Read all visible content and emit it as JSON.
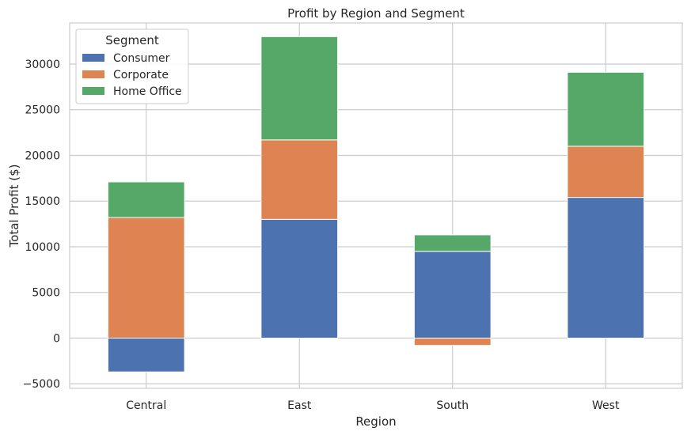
{
  "chart_data": {
    "type": "bar",
    "stacked": true,
    "title": "Profit by Region and Segment",
    "xlabel": "Region",
    "ylabel": "Total Profit ($)",
    "categories": [
      "Central",
      "East",
      "South",
      "West"
    ],
    "series": [
      {
        "name": "Consumer",
        "color": "#4c72b0",
        "values": [
          -3700,
          13000,
          9500,
          15400
        ]
      },
      {
        "name": "Corporate",
        "color": "#dd8452",
        "values": [
          13200,
          8700,
          -800,
          5600
        ]
      },
      {
        "name": "Home Office",
        "color": "#55a868",
        "values": [
          3900,
          11300,
          1800,
          8100
        ]
      }
    ],
    "ylim": [
      -5500,
      34500
    ],
    "yticks": [
      -5000,
      0,
      5000,
      10000,
      15000,
      20000,
      25000,
      30000
    ],
    "ytick_labels": [
      "−5000",
      "0",
      "5000",
      "10000",
      "15000",
      "20000",
      "25000",
      "30000"
    ],
    "grid": true,
    "legend": {
      "title": "Segment",
      "position": "top-left"
    }
  }
}
